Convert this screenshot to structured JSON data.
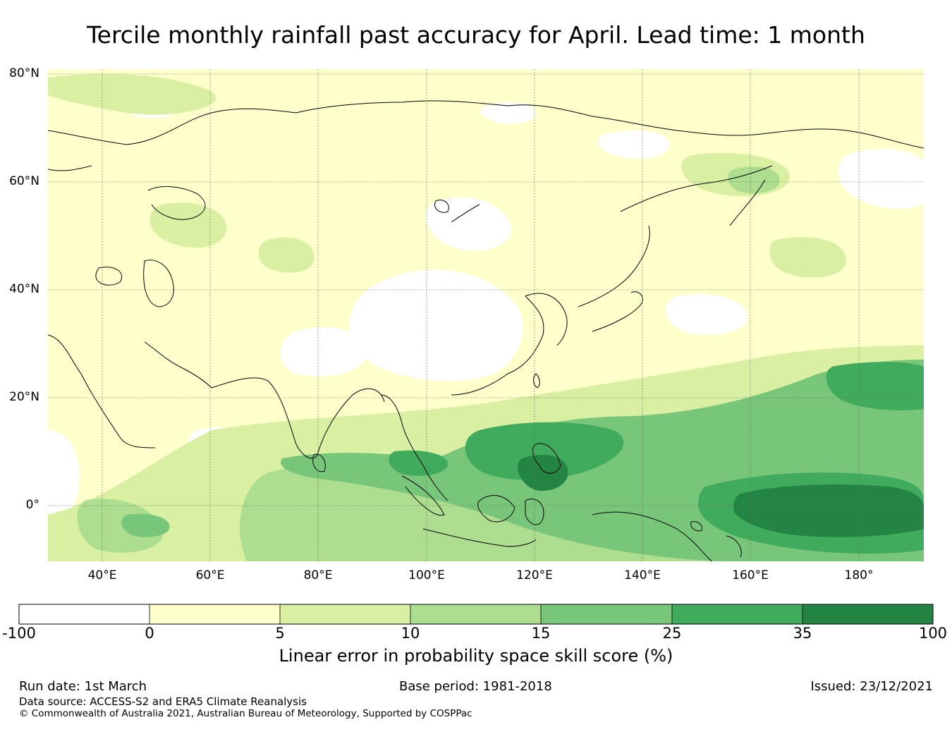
{
  "title": "Tercile monthly rainfall past accuracy for April. Lead time: 1 month",
  "map": {
    "lon_range": [
      30,
      192
    ],
    "lat_range": [
      -10,
      81
    ],
    "lat_ticks": [
      {
        "value": 80,
        "label": "80°N"
      },
      {
        "value": 60,
        "label": "60°N"
      },
      {
        "value": 40,
        "label": "40°N"
      },
      {
        "value": 20,
        "label": "20°N"
      },
      {
        "value": 0,
        "label": "0°"
      }
    ],
    "lon_ticks": [
      {
        "value": 40,
        "label": "40°E"
      },
      {
        "value": 60,
        "label": "60°E"
      },
      {
        "value": 80,
        "label": "80°E"
      },
      {
        "value": 100,
        "label": "100°E"
      },
      {
        "value": 120,
        "label": "120°E"
      },
      {
        "value": 140,
        "label": "140°E"
      },
      {
        "value": 160,
        "label": "160°E"
      },
      {
        "value": 180,
        "label": "180°"
      }
    ]
  },
  "colorbar": {
    "boundaries": [
      "-100",
      "0",
      "5",
      "10",
      "15",
      "25",
      "35",
      "100"
    ],
    "colors": [
      "#ffffff",
      "#ffffcc",
      "#d9f0a3",
      "#addd8e",
      "#78c679",
      "#41ab5d",
      "#238443"
    ],
    "label": "Linear error in probability space skill score (%)"
  },
  "footer": {
    "run_date": "Run date: 1st March",
    "base_period": "Base period: 1981-2018",
    "issued": "Issued: 23/12/2021",
    "data_source": "Data source: ACCESS-S2 and ERA5 Climate Reanalysis",
    "copyright": "© Commonwealth of Australia 2021, Australian Bureau of Meteorology, Supported by COSPPac"
  }
}
